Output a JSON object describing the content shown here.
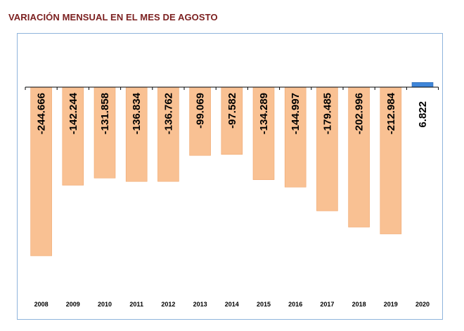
{
  "title": "VARIACIÓN MENSUAL EN EL MES DE AGOSTO",
  "colors": {
    "negative": "#f9c193",
    "negative_stroke": "#f0a870",
    "positive": "#3f86d9",
    "positive_stroke": "#2a66b0",
    "frame": "#8fb4dc",
    "title": "#7b1f1f"
  },
  "chart_data": {
    "type": "bar",
    "title": "VARIACIÓN MENSUAL EN EL MES DE AGOSTO",
    "xlabel": "",
    "ylabel": "",
    "categories": [
      "2008",
      "2009",
      "2010",
      "2011",
      "2012",
      "2013",
      "2014",
      "2015",
      "2016",
      "2017",
      "2018",
      "2019",
      "2020"
    ],
    "values": [
      -244666,
      -142244,
      -131858,
      -136834,
      -136762,
      -99069,
      -97582,
      -134289,
      -144997,
      -179485,
      -202996,
      -212984,
      6822
    ],
    "data_labels": [
      "-244.666",
      "-142.244",
      "-131.858",
      "-136.834",
      "-136.762",
      "-99.069",
      "-97.582",
      "-134.289",
      "-144.997",
      "-179.485",
      "-202.996",
      "-212.984",
      "6.822"
    ],
    "ylim": [
      -300000,
      6822
    ],
    "grid": false,
    "legend": "none"
  }
}
